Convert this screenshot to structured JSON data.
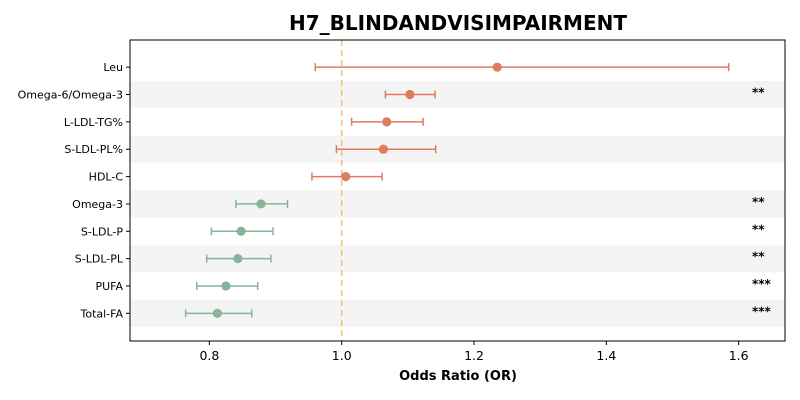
{
  "chart_data": {
    "type": "scatter",
    "subtype": "forest-plot",
    "title": "H7_BLINDANDVISIMPAIRMENT",
    "xlabel": "Odds Ratio (OR)",
    "ylabel": "",
    "xlim": [
      0.68,
      1.67
    ],
    "xticks": [
      "0.8",
      "1.0",
      "1.2",
      "1.4",
      "1.6"
    ],
    "reference_line": 1.0,
    "colors": {
      "above_one": "#e07b5f",
      "below_one": "#86b59a",
      "reference": "#f5c27a",
      "band": "#f4f4f4"
    },
    "rows": [
      {
        "label": "Leu",
        "or": 1.235,
        "ci_low": 0.96,
        "ci_high": 1.585,
        "sig": ""
      },
      {
        "label": "Omega-6/Omega-3",
        "or": 1.103,
        "ci_low": 1.066,
        "ci_high": 1.141,
        "sig": "**"
      },
      {
        "label": "L-LDL-TG%",
        "or": 1.068,
        "ci_low": 1.015,
        "ci_high": 1.123,
        "sig": ""
      },
      {
        "label": "S-LDL-PL%",
        "or": 1.063,
        "ci_low": 0.992,
        "ci_high": 1.142,
        "sig": ""
      },
      {
        "label": "HDL-C",
        "or": 1.006,
        "ci_low": 0.955,
        "ci_high": 1.061,
        "sig": ""
      },
      {
        "label": "Omega-3",
        "or": 0.878,
        "ci_low": 0.84,
        "ci_high": 0.918,
        "sig": "**"
      },
      {
        "label": "S-LDL-P",
        "or": 0.848,
        "ci_low": 0.803,
        "ci_high": 0.896,
        "sig": "**"
      },
      {
        "label": "S-LDL-PL",
        "or": 0.843,
        "ci_low": 0.796,
        "ci_high": 0.893,
        "sig": "**"
      },
      {
        "label": "PUFA",
        "or": 0.825,
        "ci_low": 0.781,
        "ci_high": 0.873,
        "sig": "***"
      },
      {
        "label": "Total-FA",
        "or": 0.812,
        "ci_low": 0.764,
        "ci_high": 0.864,
        "sig": "***"
      }
    ]
  }
}
